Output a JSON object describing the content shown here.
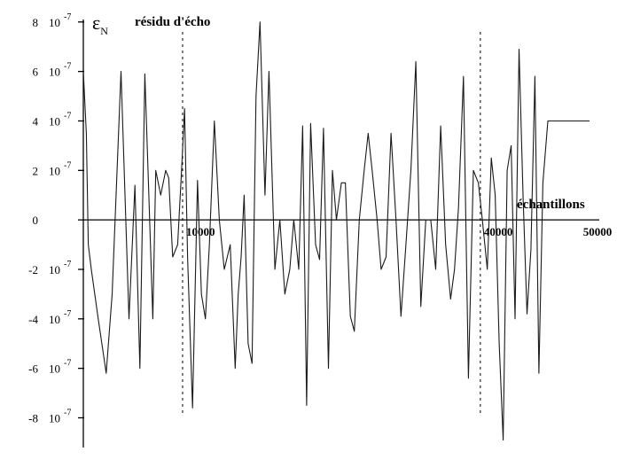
{
  "chart_data": {
    "type": "line",
    "y_tick_labels": [
      {
        "value": 8e-07,
        "coef": "8",
        "pow": "10",
        "exp": "-7"
      },
      {
        "value": 6e-07,
        "coef": "6",
        "pow": "10",
        "exp": "-7"
      },
      {
        "value": 4e-07,
        "coef": "4",
        "pow": "10",
        "exp": "-7"
      },
      {
        "value": 2e-07,
        "coef": "2",
        "pow": "10",
        "exp": "-7"
      },
      {
        "value": 0,
        "coef": "0",
        "pow": "",
        "exp": ""
      },
      {
        "value": -2e-07,
        "coef": "-2",
        "pow": "10",
        "exp": "-7"
      },
      {
        "value": -4e-07,
        "coef": "-4",
        "pow": "10",
        "exp": "-7"
      },
      {
        "value": -6e-07,
        "coef": "-6",
        "pow": "10",
        "exp": "-7"
      },
      {
        "value": -8e-07,
        "coef": "-8",
        "pow": "10",
        "exp": "-7"
      }
    ],
    "x_tick_labels": [
      {
        "value": 10000,
        "label": "10000"
      },
      {
        "value": 40000,
        "label": "40000"
      },
      {
        "value": 50000,
        "label": "50000"
      }
    ],
    "ylabel": {
      "symbol": "ε",
      "subscript": "N"
    },
    "title": "résidu d'écho",
    "xlabel": "échantillons",
    "xlim": [
      0,
      51000
    ],
    "ylim": [
      -9.2e-07,
      8.1e-07
    ],
    "dashed_markers_x": [
      10000,
      40000
    ],
    "grid": false,
    "series": [
      {
        "color": "#1a1a1a",
        "x": [
          0,
          300,
          500,
          800,
          1500,
          2300,
          2900,
          3800,
          4600,
          5200,
          5700,
          6200,
          6600,
          7000,
          7300,
          7800,
          8300,
          8600,
          9000,
          9500,
          9900,
          10200,
          10500,
          11000,
          11500,
          11900,
          12300,
          12700,
          13200,
          13700,
          14200,
          14800,
          15300,
          15600,
          15900,
          16200,
          16600,
          17000,
          17400,
          17800,
          18300,
          18700,
          19300,
          19800,
          20300,
          20800,
          21200,
          21700,
          22100,
          22500,
          22900,
          23400,
          23800,
          24200,
          24700,
          25100,
          25500,
          26000,
          26400,
          26900,
          27300,
          27800,
          28300,
          28700,
          29100,
          29600,
          30000,
          30500,
          31000,
          31500,
          32000,
          32500,
          33000,
          33500,
          34000,
          34500,
          35000,
          35500,
          36000,
          36500,
          37000,
          37400,
          37800,
          38300,
          38800,
          39300,
          39800,
          40200,
          40700,
          41100,
          41500,
          41900,
          42300,
          42700,
          43100,
          43500,
          43900,
          44300,
          44700,
          45100,
          45500,
          45900,
          46300,
          46800,
          47300,
          47800,
          48300,
          48700,
          49100,
          49600,
          50000,
          50500,
          51000
        ],
        "y": [
          6e-07,
          3.5e-07,
          -1e-07,
          -2e-07,
          -4e-07,
          -6.2e-07,
          -3e-07,
          6e-07,
          -4e-07,
          1.4e-07,
          -6e-07,
          5.9e-07,
          1e-07,
          -4e-07,
          2e-07,
          1e-07,
          2e-07,
          1.7e-07,
          -1.5e-07,
          -1e-07,
          2e-07,
          4.5e-07,
          -1.5e-07,
          -7.6e-07,
          1.6e-07,
          -3e-07,
          -4e-07,
          -1e-07,
          4e-07,
          0,
          -2e-07,
          -1e-07,
          -6e-07,
          -3e-07,
          -1.5e-07,
          1e-07,
          -5e-07,
          -5.8e-07,
          5e-07,
          8e-07,
          1e-07,
          6e-07,
          -2e-07,
          0,
          -3e-07,
          -2e-07,
          0,
          -2e-07,
          3.8e-07,
          -7.5e-07,
          3.9e-07,
          -1e-07,
          -1.6e-07,
          3.7e-07,
          -6e-07,
          2e-07,
          0,
          1.5e-07,
          1.5e-07,
          -3.9e-07,
          -4.5e-07,
          0,
          2e-07,
          3.5e-07,
          2e-07,
          0,
          -2e-07,
          -1.5e-07,
          3.5e-07,
          0,
          -3.9e-07,
          -1e-07,
          2e-07,
          6.4e-07,
          -3.5e-07,
          0,
          0,
          -2e-07,
          3.8e-07,
          -1e-07,
          -3.2e-07,
          -2e-07,
          5e-08,
          5.8e-07,
          -6.4e-07,
          2e-07,
          1.5e-07,
          0,
          -2e-07,
          2.5e-07,
          1e-07,
          -5e-07,
          -8.9e-07,
          2e-07,
          3e-07,
          -4e-07,
          6.9e-07,
          1e-07,
          -3.8e-07,
          -1.2e-07,
          5.8e-07,
          -6.2e-07,
          1.5e-07,
          4e-07,
          4e-07,
          4e-07,
          4e-07,
          4e-07,
          4e-07,
          4e-07,
          4e-07,
          4e-07,
          4e-07
        ]
      }
    ]
  }
}
